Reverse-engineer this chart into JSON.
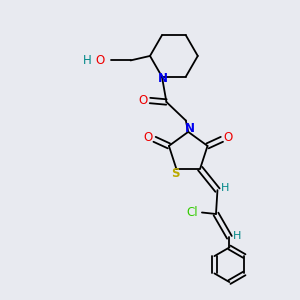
{
  "bg_color": "#e8eaf0",
  "bond_color": "#000000",
  "N_color": "#0000ee",
  "O_color": "#ee0000",
  "S_color": "#bbaa00",
  "Cl_color": "#33cc00",
  "H_color": "#008888",
  "font_size": 8.5,
  "line_width": 1.3,
  "fig_size": [
    3.0,
    3.0
  ],
  "dpi": 100,
  "xlim": [
    0,
    10
  ],
  "ylim": [
    0,
    10
  ]
}
